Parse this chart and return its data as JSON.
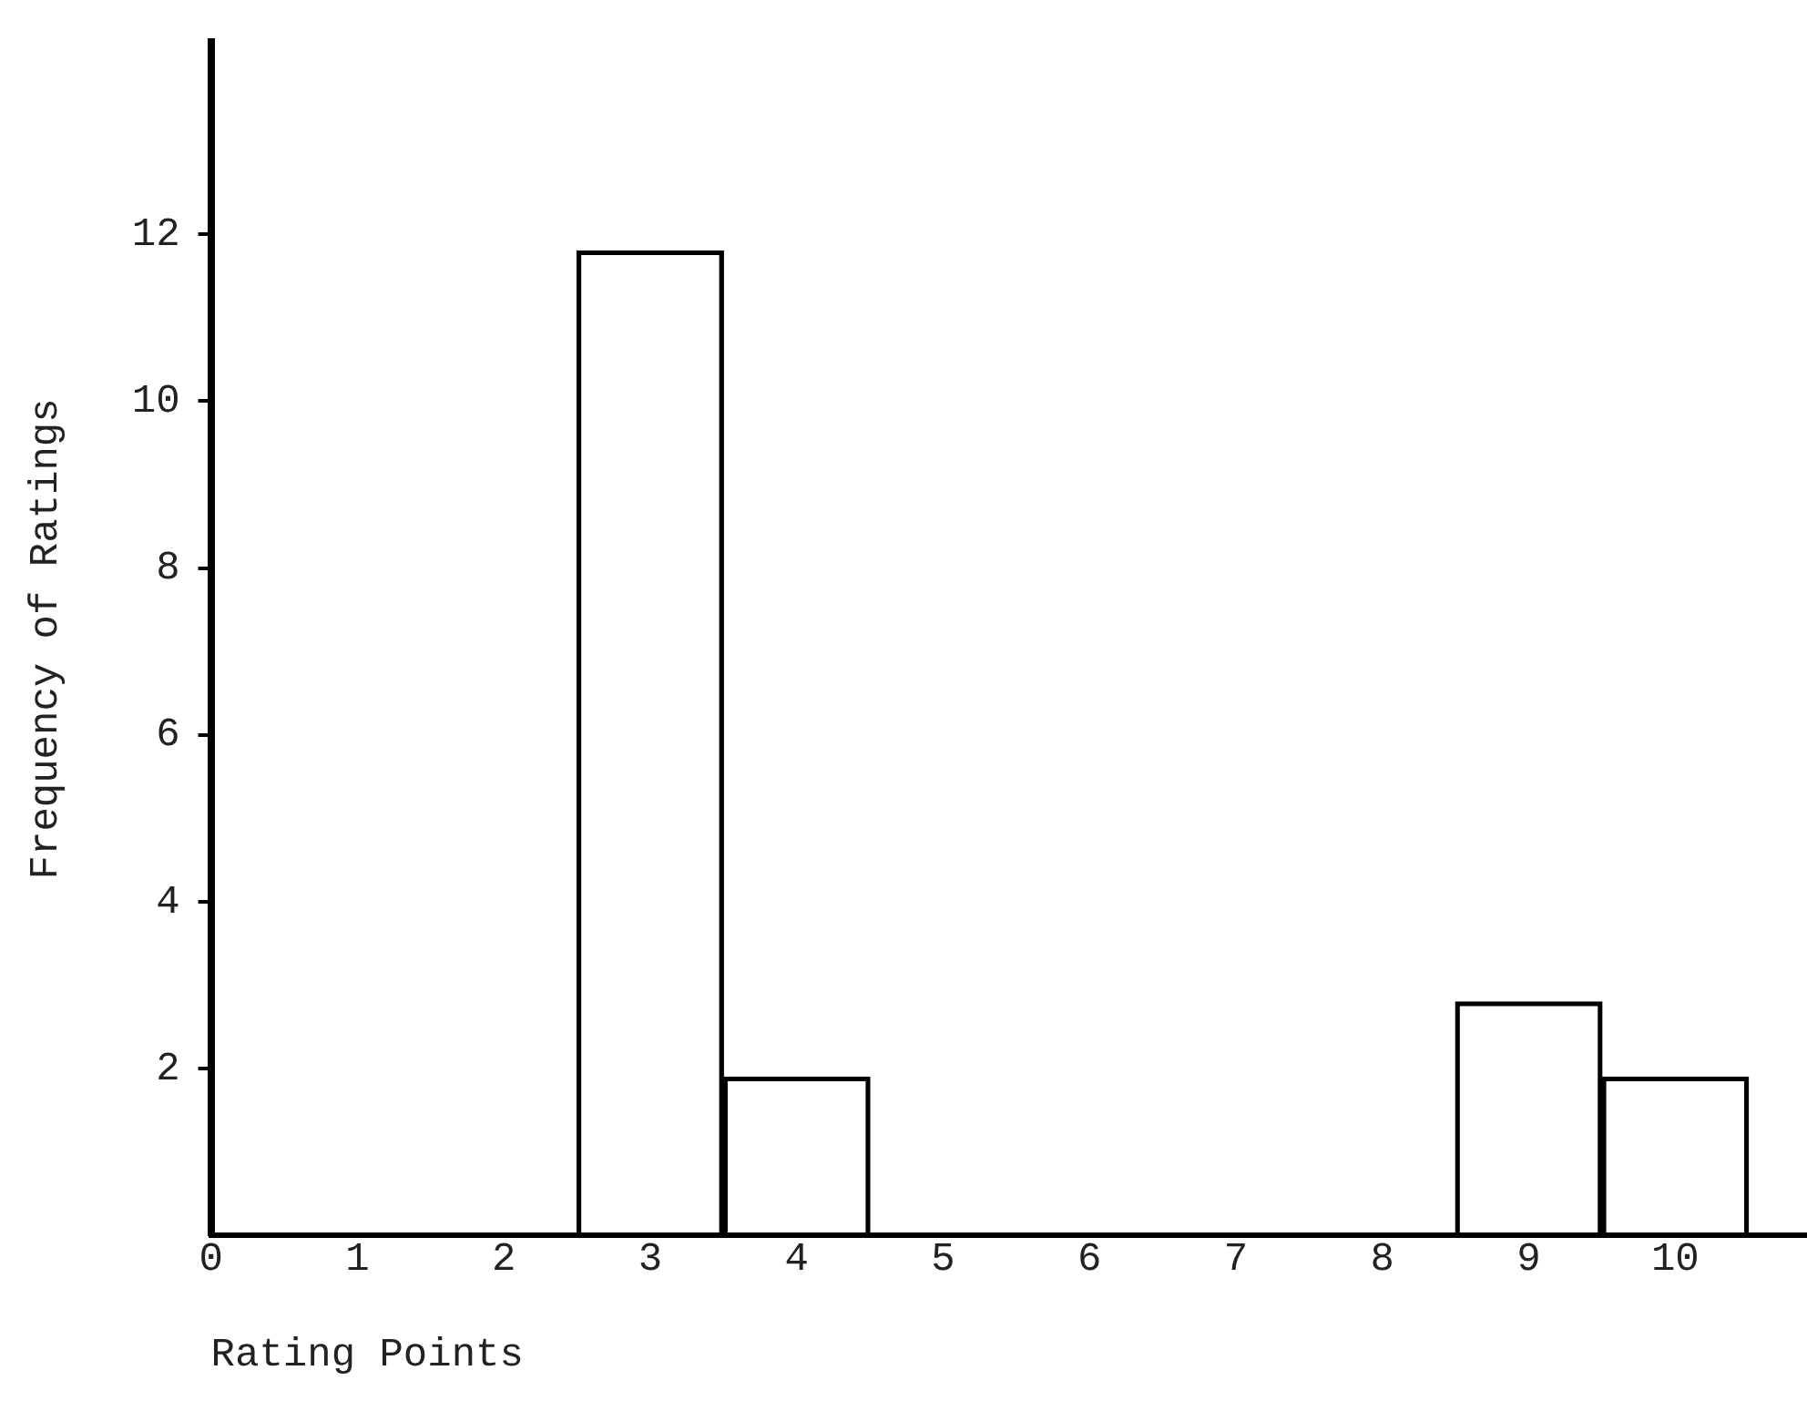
{
  "chart_data": {
    "type": "bar",
    "xlabel": "Rating Points",
    "ylabel": "Frequency of Ratings",
    "x": [
      3,
      4,
      9,
      10
    ],
    "values": [
      11.8,
      1.9,
      2.8,
      1.9
    ],
    "color": "#000000",
    "xlim": [
      0,
      10.9
    ],
    "xticks": [
      0,
      1,
      2,
      3,
      4,
      5,
      6,
      7,
      8,
      9,
      10
    ],
    "ylim": [
      0,
      14.3
    ],
    "yticks": [
      2,
      4,
      6,
      8,
      10,
      12
    ],
    "grid": false,
    "legend": false
  }
}
